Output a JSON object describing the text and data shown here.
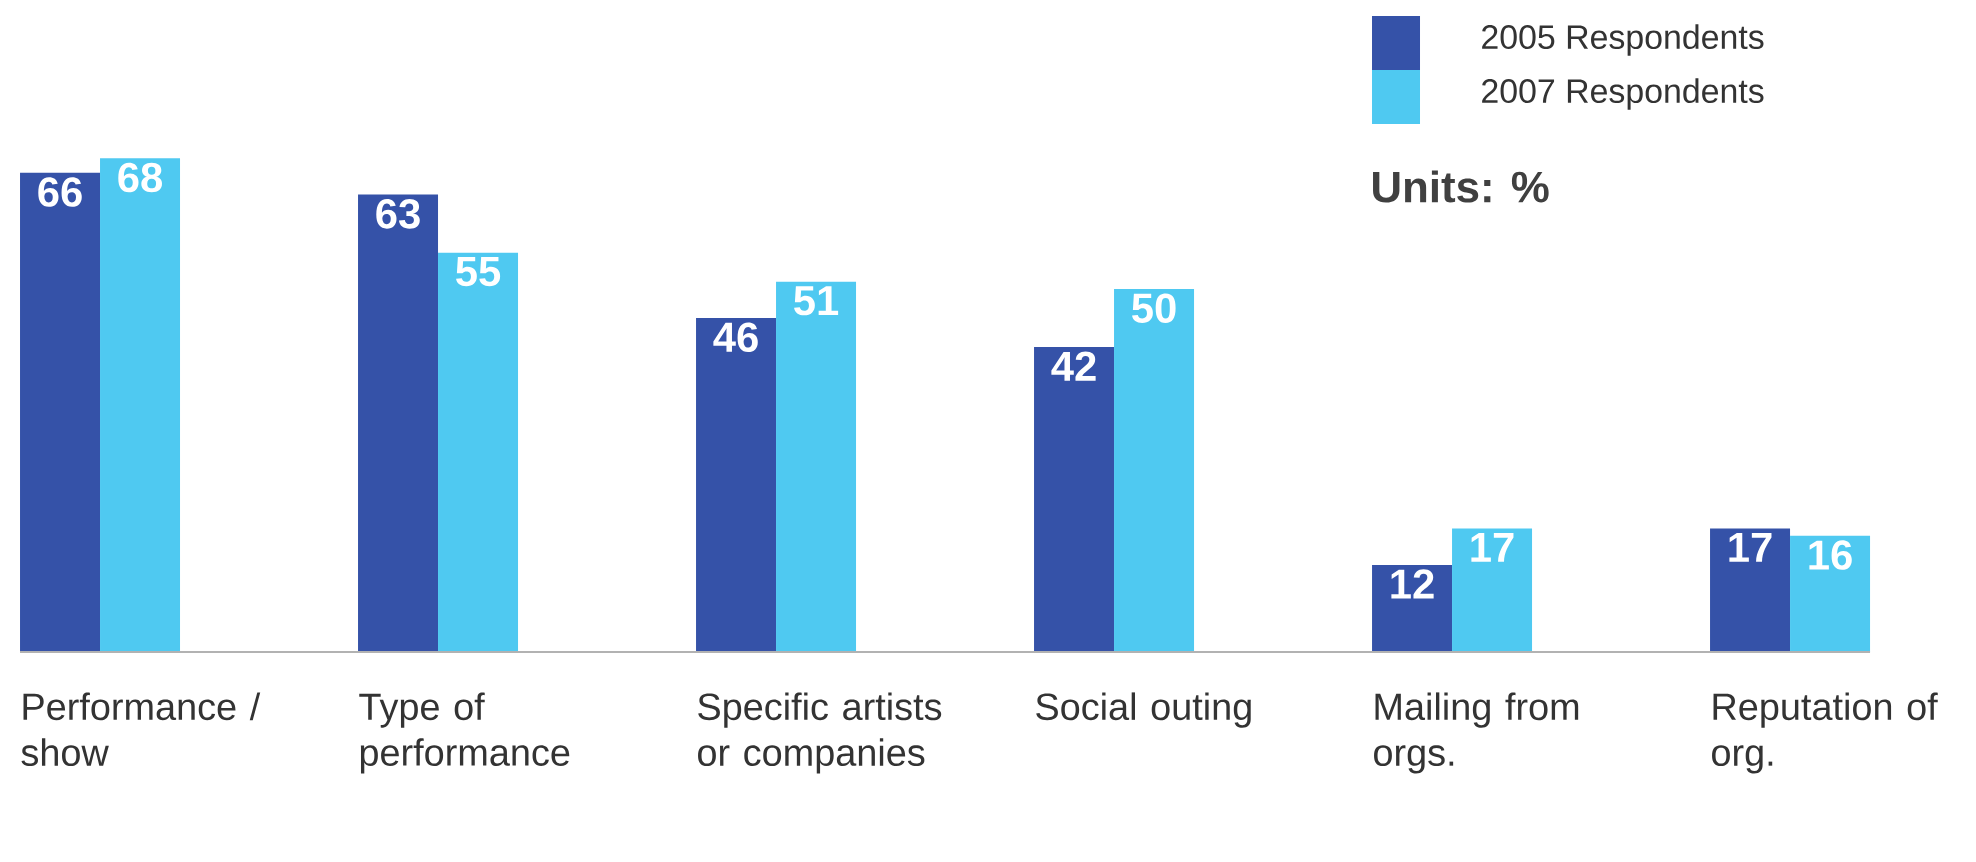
{
  "chart_data": {
    "type": "bar",
    "categories": [
      "Performance / show",
      "Type of performance",
      "Specific artists or companies",
      "Social outing",
      "Mailing from orgs.",
      "Reputation of org."
    ],
    "series": [
      {
        "name": "2005 Respondents",
        "color": "#3552a8",
        "values": [
          66,
          63,
          46,
          42,
          12,
          17
        ]
      },
      {
        "name": "2007 Respondents",
        "color": "#4fc9f1",
        "values": [
          68,
          55,
          51,
          50,
          17,
          16
        ]
      }
    ],
    "data_labels": true,
    "legend": "top right",
    "annotations": [
      "Units: %"
    ]
  }
}
